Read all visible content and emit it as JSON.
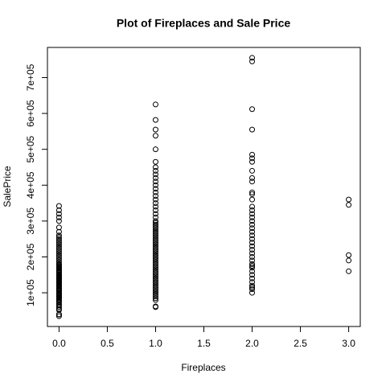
{
  "chart_data": {
    "type": "scatter",
    "title": "Plot of Fireplaces and Sale Price",
    "x_label": "Fireplaces",
    "y_label": "SalePrice",
    "color": "#000000",
    "xlim": [
      -0.12,
      3.12
    ],
    "ylim": [
      6000,
      784000
    ],
    "xticks": [
      {
        "value": 0,
        "label": "0.0"
      },
      {
        "value": 0.5,
        "label": "0.5"
      },
      {
        "value": 1,
        "label": "1.0"
      },
      {
        "value": 1.5,
        "label": "1.5"
      },
      {
        "value": 2,
        "label": "2.0"
      },
      {
        "value": 2.5,
        "label": "2.5"
      },
      {
        "value": 3,
        "label": "3.0"
      }
    ],
    "yticks": [
      {
        "value": 100000,
        "label": "1e+05"
      },
      {
        "value": 200000,
        "label": "2e+05"
      },
      {
        "value": 300000,
        "label": "3e+05"
      },
      {
        "value": 400000,
        "label": "4e+05"
      },
      {
        "value": 500000,
        "label": "5e+05"
      },
      {
        "value": 600000,
        "label": "6e+05"
      },
      {
        "value": 700000,
        "label": "7e+05"
      }
    ],
    "groups": [
      {
        "x": 0,
        "values": [
          34900,
          39300,
          40000,
          52000,
          55000,
          60000,
          64500,
          68000,
          72500,
          75000,
          79000,
          82000,
          85000,
          87000,
          89500,
          91000,
          93500,
          96000,
          98000,
          100000,
          103000,
          106000,
          108000,
          110000,
          112000,
          115000,
          118000,
          120000,
          122000,
          125000,
          127000,
          129000,
          130000,
          132000,
          135000,
          137000,
          139000,
          140000,
          142000,
          144000,
          145000,
          147000,
          149000,
          150000,
          152000,
          155000,
          158000,
          160000,
          163000,
          165000,
          168000,
          170000,
          173000,
          175000,
          178000,
          180000,
          185000,
          190000,
          195000,
          200000,
          205000,
          210000,
          215000,
          220000,
          225000,
          230000,
          235000,
          240000,
          245000,
          250000,
          255000,
          260000,
          270000,
          282000,
          300000,
          310000,
          320000,
          330000,
          342000
        ]
      },
      {
        "x": 1,
        "values": [
          60000,
          62000,
          80000,
          85000,
          90000,
          95000,
          100000,
          105000,
          110000,
          115000,
          120000,
          125000,
          130000,
          135000,
          140000,
          145000,
          150000,
          155000,
          160000,
          165000,
          170000,
          175000,
          180000,
          185000,
          190000,
          195000,
          200000,
          205000,
          210000,
          215000,
          220000,
          225000,
          230000,
          235000,
          240000,
          245000,
          250000,
          255000,
          260000,
          265000,
          270000,
          275000,
          280000,
          285000,
          290000,
          295000,
          300000,
          310000,
          320000,
          330000,
          340000,
          350000,
          360000,
          370000,
          380000,
          390000,
          400000,
          410000,
          420000,
          430000,
          440000,
          450000,
          465000,
          500000,
          538000,
          555000,
          582000,
          625000
        ]
      },
      {
        "x": 2,
        "values": [
          100000,
          110000,
          115000,
          120000,
          130000,
          140000,
          150000,
          160000,
          170000,
          175000,
          180000,
          190000,
          200000,
          210000,
          220000,
          230000,
          240000,
          250000,
          260000,
          270000,
          280000,
          290000,
          300000,
          310000,
          320000,
          330000,
          340000,
          360000,
          375000,
          380000,
          410000,
          420000,
          440000,
          465000,
          475000,
          485000,
          555000,
          612000,
          745000,
          755000
        ]
      },
      {
        "x": 3,
        "values": [
          160000,
          190000,
          205000,
          345000,
          360000
        ]
      }
    ]
  }
}
